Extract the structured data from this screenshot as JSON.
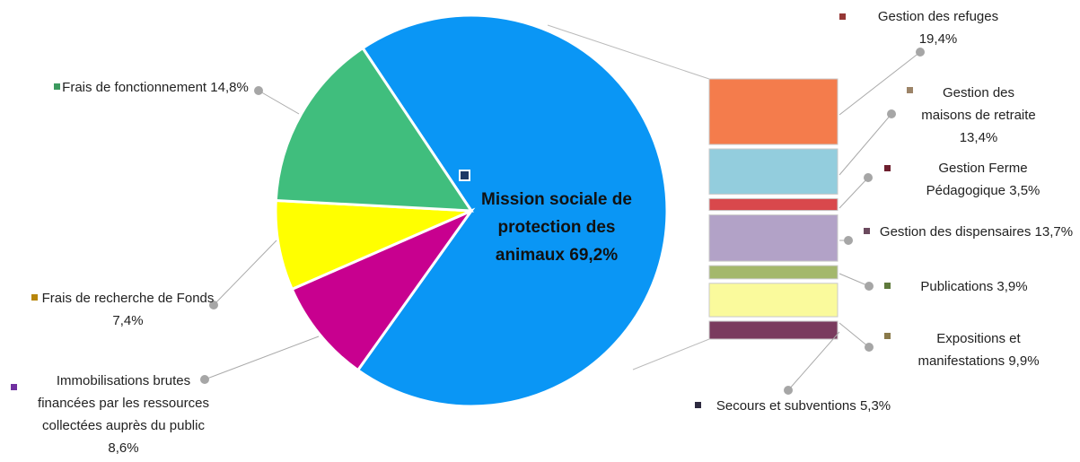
{
  "chart_data": {
    "type": "bar-of-pie",
    "categories": [
      "Mission sociale de protection des animaux",
      "Immobilisations brutes financées par les ressources collectées auprès du public",
      "Frais de recherche de Fonds",
      "Frais de fonctionnement"
    ],
    "values": [
      69.2,
      8.6,
      7.4,
      14.8
    ],
    "value_labels": [
      "69,2%",
      "8,6%",
      "7,4%",
      "14,8%"
    ],
    "colors": [
      "#0a96f5",
      "#c8008f",
      "#ffff00",
      "#40be7d"
    ],
    "marker_colors": [
      "#1f3864",
      "#7030a0",
      "#b8860b",
      "#3c9a5f"
    ],
    "breakdown": {
      "categories": [
        "Gestion des refuges",
        "Gestion des maisons de retraite",
        "Gestion Ferme Pédagogique",
        "Gestion des dispensaires",
        "Publications",
        "Expositions et manifestations",
        "Secours et subventions"
      ],
      "values": [
        19.4,
        13.4,
        3.5,
        13.7,
        3.9,
        9.9,
        5.3
      ],
      "value_labels": [
        "19,4%",
        "13,4%",
        "3,5%",
        "13,7%",
        "3,9%",
        "9,9%",
        "5,3%"
      ],
      "colors": [
        "#f47c4c",
        "#93cddd",
        "#d9484c",
        "#b2a2c7",
        "#a4b86c",
        "#fafa9c",
        "#7a3b5e"
      ],
      "marker_colors": [
        "#953735",
        "#9c8468",
        "#6e1f2e",
        "#6b4a5e",
        "#5f7a3c",
        "#8a7a4a",
        "#2e2a40"
      ]
    }
  }
}
